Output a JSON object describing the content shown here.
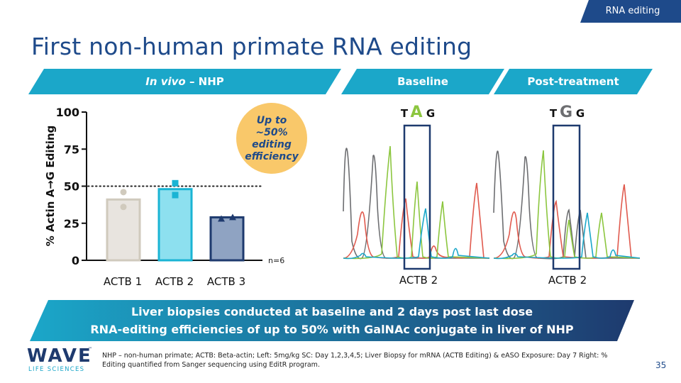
{
  "section_tag": "RNA editing",
  "title": "First non-human primate RNA editing",
  "banners": {
    "left_italic": "In vivo",
    "left_rest": " – NHP",
    "middle": "Baseline",
    "right": "Post-treatment"
  },
  "callout": {
    "lines": [
      "Up to",
      "~50%",
      "editing",
      "efficiency"
    ]
  },
  "chart_data": {
    "type": "bar",
    "ylabel": "% Actin A→G Editing",
    "ylim": [
      0,
      100
    ],
    "yticks": [
      0,
      25,
      50,
      75,
      100
    ],
    "categories": [
      "ACTB 1",
      "ACTB 2",
      "ACTB 3"
    ],
    "values": [
      41,
      48,
      29
    ],
    "points": [
      [
        46,
        36
      ],
      [
        52,
        44
      ],
      [
        28,
        29
      ]
    ],
    "reference_line": 50,
    "annotation": "n=6",
    "colors": {
      "ACTB 1": "#e8e4df",
      "ACTB 2": "#8de0ef",
      "ACTB 3": "#8fa3c2"
    },
    "edge_colors": {
      "ACTB 1": "#d0cabd",
      "ACTB 2": "#1ab4d4",
      "ACTB 3": "#1e3a6e"
    }
  },
  "chromatograms": [
    {
      "id": "baseline",
      "bases": [
        "T",
        "A",
        "G"
      ],
      "label": "ACTB 2"
    },
    {
      "id": "post",
      "bases": [
        "T",
        "G",
        "G"
      ],
      "label": "ACTB 2"
    }
  ],
  "bottom_banner": {
    "line1": "Liver biopsies conducted at baseline and 2 days post last dose",
    "line2": "RNA-editing efficiencies of up to 50% with GalNAc conjugate in liver of NHP"
  },
  "footnote": "NHP – non-human primate; ACTB: Beta-actin; Left: 5mg/kg SC: Day 1,2,3,4,5; Liver Biopsy for mRNA (ACTB Editing) & eASO Exposure: Day 7 Right: % Editing quantified from Sanger sequencing using EditR program.",
  "logo": {
    "word": "WAVE",
    "tm": "™",
    "sub": "LIFE SCIENCES"
  },
  "page_number": "35",
  "colors": {
    "navy": "#1e4a8a",
    "cyan": "#1ba7c9",
    "gold": "#f9c86a",
    "A_green": "#8cc63f",
    "G_gray": "#6d6e71"
  }
}
